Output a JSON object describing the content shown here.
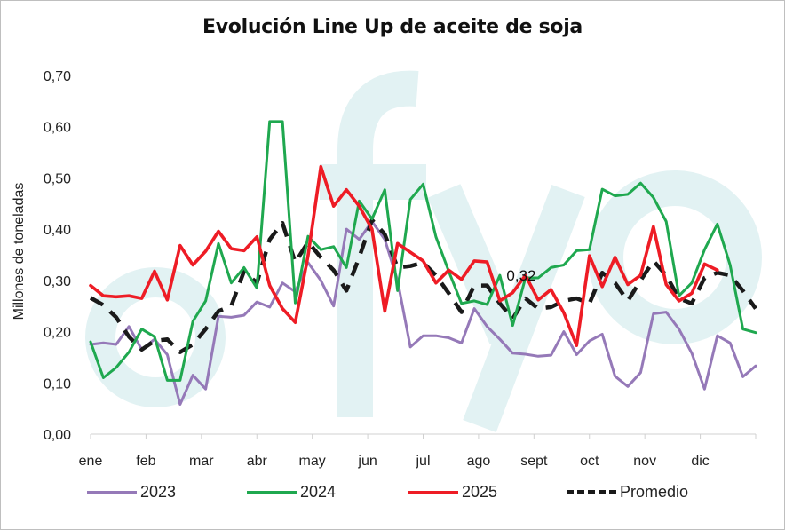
{
  "chart_data": {
    "type": "line",
    "title": "Evolución Line Up de aceite de soja",
    "ylabel": "Millones de toneladas",
    "xlabel": "",
    "ylim": [
      0,
      0.7
    ],
    "yticks": [
      "0,00",
      "0,10",
      "0,20",
      "0,30",
      "0,40",
      "0,50",
      "0,60",
      "0,70"
    ],
    "ytick_values": [
      0,
      0.1,
      0.2,
      0.3,
      0.4,
      0.5,
      0.6,
      0.7
    ],
    "months": [
      "ene",
      "feb",
      "mar",
      "abr",
      "may",
      "jun",
      "jul",
      "ago",
      "sept",
      "oct",
      "nov",
      "dic"
    ],
    "weeks_per_year": 52,
    "grid": false,
    "legend_position": "bottom",
    "watermark": "cfyo",
    "annotation": {
      "text": "0,32",
      "series": "2025",
      "week": 37
    },
    "series": [
      {
        "name": "2023",
        "color": "#9579b8",
        "dash": "solid",
        "values": [
          0.175,
          0.178,
          0.175,
          0.21,
          0.165,
          0.185,
          0.155,
          0.058,
          0.115,
          0.088,
          0.23,
          0.228,
          0.232,
          0.258,
          0.248,
          0.295,
          0.278,
          0.335,
          0.3,
          0.25,
          0.4,
          0.38,
          0.415,
          0.38,
          0.3,
          0.17,
          0.192,
          0.192,
          0.188,
          0.178,
          0.245,
          0.21,
          0.185,
          0.158,
          0.156,
          0.152,
          0.154,
          0.2,
          0.155,
          0.182,
          0.195,
          0.113,
          0.093,
          0.12,
          0.235,
          0.238,
          0.205,
          0.158,
          0.088,
          0.192,
          0.178,
          0.112,
          0.133
        ]
      },
      {
        "name": "2024",
        "color": "#1fa84f",
        "dash": "solid",
        "values": [
          0.18,
          0.11,
          0.13,
          0.16,
          0.205,
          0.19,
          0.105,
          0.105,
          0.22,
          0.26,
          0.372,
          0.295,
          0.325,
          0.285,
          0.61,
          0.61,
          0.256,
          0.386,
          0.36,
          0.366,
          0.325,
          0.455,
          0.42,
          0.477,
          0.28,
          0.458,
          0.488,
          0.385,
          0.318,
          0.255,
          0.26,
          0.253,
          0.31,
          0.212,
          0.305,
          0.305,
          0.325,
          0.33,
          0.358,
          0.36,
          0.478,
          0.465,
          0.468,
          0.49,
          0.462,
          0.415,
          0.27,
          0.295,
          0.36,
          0.41,
          0.33,
          0.205,
          0.198
        ]
      },
      {
        "name": "2025",
        "color": "#ee1c25",
        "dash": "solid",
        "values": [
          0.29,
          0.27,
          0.268,
          0.27,
          0.265,
          0.318,
          0.262,
          0.368,
          0.33,
          0.357,
          0.396,
          0.362,
          0.358,
          0.385,
          0.29,
          0.245,
          0.218,
          0.348,
          0.522,
          0.445,
          0.477,
          0.445,
          0.4,
          0.24,
          0.372,
          0.355,
          0.338,
          0.295,
          0.32,
          0.302,
          0.338,
          0.336,
          0.26,
          0.276,
          0.31,
          0.262,
          0.282,
          0.237,
          0.173,
          0.348,
          0.288,
          0.345,
          0.292,
          0.31,
          0.405,
          0.292,
          0.26,
          0.275,
          0.332,
          0.32
        ]
      },
      {
        "name": "Promedio",
        "color": "#1a1a1a",
        "dash": "dashed",
        "values": [
          0.266,
          0.252,
          0.228,
          0.19,
          0.165,
          0.182,
          0.185,
          0.16,
          0.175,
          0.205,
          0.24,
          0.25,
          0.318,
          0.295,
          0.38,
          0.412,
          0.335,
          0.375,
          0.345,
          0.32,
          0.28,
          0.345,
          0.418,
          0.39,
          0.325,
          0.328,
          0.335,
          0.31,
          0.275,
          0.238,
          0.29,
          0.29,
          0.255,
          0.225,
          0.265,
          0.245,
          0.248,
          0.26,
          0.265,
          0.255,
          0.315,
          0.295,
          0.26,
          0.3,
          0.338,
          0.31,
          0.265,
          0.255,
          0.305,
          0.315,
          0.31,
          0.28,
          0.245
        ]
      }
    ]
  }
}
